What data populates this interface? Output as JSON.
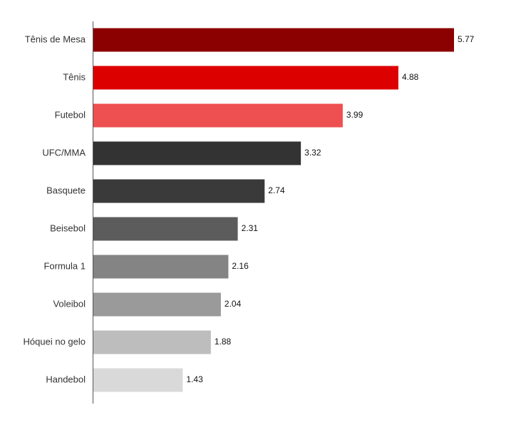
{
  "chart_data": {
    "type": "bar",
    "orientation": "horizontal",
    "title": "",
    "xlabel": "",
    "ylabel": "",
    "categories": [
      "Tênis de Mesa",
      "Tênis",
      "Futebol",
      "UFC/MMA",
      "Basquete",
      "Beisebol",
      "Formula 1",
      "Voleibol",
      "Hóquei no gelo",
      "Handebol"
    ],
    "values": [
      5.77,
      4.88,
      3.99,
      3.32,
      2.74,
      2.31,
      2.16,
      2.04,
      1.88,
      1.43
    ],
    "value_labels": [
      "5.77",
      "4.88",
      "3.99",
      "3.32",
      "2.74",
      "2.31",
      "2.16",
      "2.04",
      "1.88",
      "1.43"
    ],
    "colors": [
      "#8b0000",
      "#dd0000",
      "#ee4f50",
      "#333333",
      "#3a3a3a",
      "#5c5c5c",
      "#848484",
      "#9a9a9a",
      "#bdbdbd",
      "#d9d9d9"
    ],
    "xlim": [
      0,
      5.77
    ],
    "grid": false,
    "legend": "none"
  }
}
